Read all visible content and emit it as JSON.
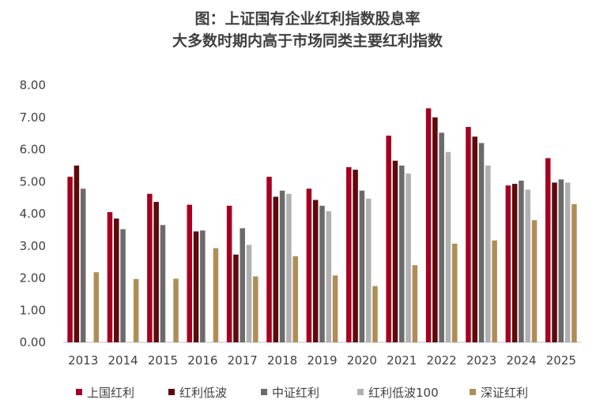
{
  "chart_data": {
    "type": "bar",
    "title": "图：上证国有企业红利指数股息率",
    "subtitle": "大多数时期内高于市场同类主要红利指数",
    "xlabel": "",
    "ylabel": "",
    "ylim": [
      0,
      8
    ],
    "yticks": [
      "0.00",
      "1.00",
      "2.00",
      "3.00",
      "4.00",
      "5.00",
      "6.00",
      "7.00",
      "8.00"
    ],
    "grid": false,
    "legend_position": "bottom",
    "categories": [
      "2013",
      "2014",
      "2015",
      "2016",
      "2017",
      "2018",
      "2019",
      "2020",
      "2021",
      "2022",
      "2023",
      "2024",
      "2025"
    ],
    "series": [
      {
        "name": "上国红利",
        "color": "#A50021",
        "values": [
          5.15,
          4.05,
          4.62,
          4.28,
          4.25,
          5.15,
          4.78,
          5.45,
          6.43,
          7.28,
          6.7,
          4.88,
          5.73
        ]
      },
      {
        "name": "红利低波",
        "color": "#5C0A0A",
        "values": [
          5.5,
          3.85,
          4.37,
          3.45,
          2.73,
          4.53,
          4.43,
          5.37,
          5.65,
          7.0,
          6.4,
          4.93,
          4.97
        ]
      },
      {
        "name": "中证红利",
        "color": "#6B6B6B",
        "values": [
          4.78,
          3.52,
          3.65,
          3.48,
          3.55,
          4.72,
          4.25,
          4.72,
          5.5,
          6.52,
          6.2,
          5.03,
          5.07
        ]
      },
      {
        "name": "红利低波100",
        "color": "#B0B0B0",
        "values": [
          null,
          null,
          null,
          null,
          3.03,
          4.62,
          4.08,
          4.47,
          5.25,
          5.92,
          5.5,
          4.75,
          4.97
        ]
      },
      {
        "name": "深证红利",
        "color": "#B08D57",
        "values": [
          2.18,
          1.97,
          1.98,
          2.93,
          2.05,
          2.68,
          2.08,
          1.75,
          2.4,
          3.07,
          3.17,
          3.8,
          4.3
        ]
      }
    ]
  }
}
